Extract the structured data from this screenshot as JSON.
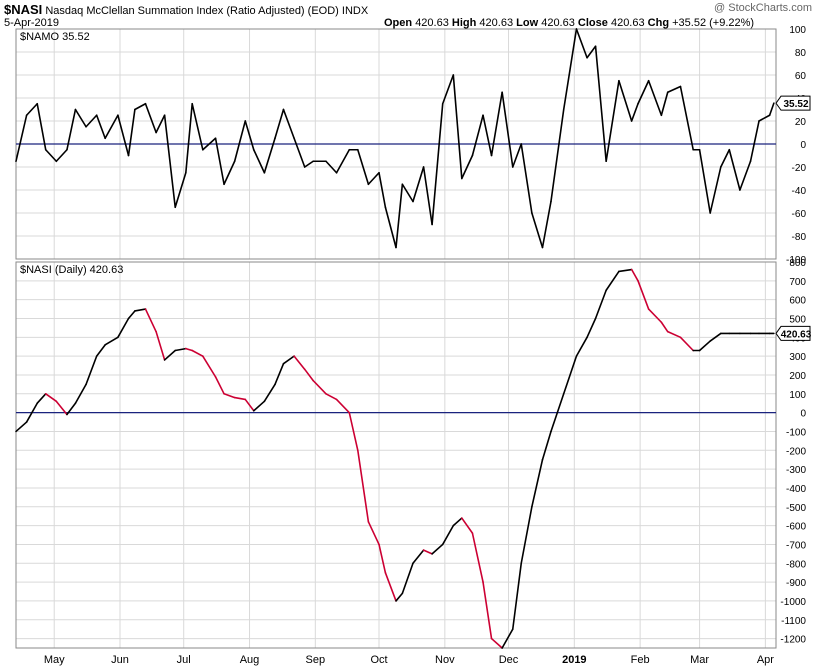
{
  "header": {
    "symbol": "$NASI",
    "description": "Nasdaq McClellan Summation Index (Ratio Adjusted) (EOD)",
    "exchange": "INDX",
    "date": "5-Apr-2019",
    "watermark": "@ StockCharts.com",
    "open_label": "Open",
    "open_value": "420.63",
    "high_label": "High",
    "high_value": "420.63",
    "low_label": "Low",
    "low_value": "420.63",
    "close_label": "Close",
    "close_value": "420.63",
    "chg_label": "Chg",
    "chg_value": "+35.52 (+9.22%)"
  },
  "colors": {
    "up": "#000000",
    "down": "#cc0033",
    "zero_line": "#1a237e",
    "grid": "#d9d9d9",
    "frame": "#8a8a8a"
  },
  "chart_data": [
    {
      "type": "line",
      "title": "$NAMO 35.52",
      "last_value_label": "35.52",
      "ylim": [
        -100,
        100
      ],
      "yticks": [
        100,
        80,
        60,
        40,
        20,
        0,
        -20,
        -40,
        -60,
        -80,
        -100
      ],
      "zero_line": 0,
      "grid": true,
      "x": [
        "2018-04-13",
        "2018-04-18",
        "2018-04-23",
        "2018-04-27",
        "2018-05-02",
        "2018-05-07",
        "2018-05-11",
        "2018-05-16",
        "2018-05-21",
        "2018-05-25",
        "2018-05-31",
        "2018-06-05",
        "2018-06-08",
        "2018-06-13",
        "2018-06-18",
        "2018-06-22",
        "2018-06-27",
        "2018-07-02",
        "2018-07-05",
        "2018-07-10",
        "2018-07-16",
        "2018-07-20",
        "2018-07-25",
        "2018-07-30",
        "2018-08-03",
        "2018-08-08",
        "2018-08-13",
        "2018-08-17",
        "2018-08-22",
        "2018-08-27",
        "2018-08-31",
        "2018-09-06",
        "2018-09-11",
        "2018-09-17",
        "2018-09-21",
        "2018-09-26",
        "2018-10-01",
        "2018-10-04",
        "2018-10-09",
        "2018-10-12",
        "2018-10-17",
        "2018-10-22",
        "2018-10-26",
        "2018-10-31",
        "2018-11-05",
        "2018-11-09",
        "2018-11-14",
        "2018-11-19",
        "2018-11-23",
        "2018-11-28",
        "2018-12-03",
        "2018-12-07",
        "2018-12-12",
        "2018-12-17",
        "2018-12-21",
        "2018-12-27",
        "2019-01-02",
        "2019-01-07",
        "2019-01-11",
        "2019-01-16",
        "2019-01-22",
        "2019-01-28",
        "2019-01-31",
        "2019-02-05",
        "2019-02-11",
        "2019-02-14",
        "2019-02-20",
        "2019-02-26",
        "2019-03-01",
        "2019-03-06",
        "2019-03-11",
        "2019-03-15",
        "2019-03-20",
        "2019-03-25",
        "2019-03-29",
        "2019-04-03",
        "2019-04-05"
      ],
      "values": [
        -15,
        25,
        35,
        -5,
        -15,
        -5,
        30,
        15,
        25,
        5,
        25,
        -10,
        30,
        35,
        10,
        25,
        -55,
        -25,
        35,
        -5,
        5,
        -35,
        -15,
        20,
        -5,
        -25,
        5,
        30,
        5,
        -20,
        -15,
        -15,
        -25,
        -5,
        -5,
        -35,
        -25,
        -55,
        -90,
        -35,
        -50,
        -20,
        -70,
        35,
        60,
        -30,
        -10,
        25,
        -10,
        45,
        -20,
        0,
        -60,
        -90,
        -50,
        30,
        100,
        75,
        85,
        -15,
        55,
        20,
        35,
        55,
        25,
        45,
        50,
        -5,
        -5,
        -60,
        -20,
        -5,
        -40,
        -15,
        20,
        25,
        35.52
      ]
    },
    {
      "type": "line",
      "title": "$NASI (Daily) 420.63",
      "last_value_label": "420.63",
      "ylim": [
        -1250,
        800
      ],
      "yticks": [
        800,
        700,
        600,
        500,
        400,
        300,
        200,
        100,
        0,
        -100,
        -200,
        -300,
        -400,
        -500,
        -600,
        -700,
        -800,
        -900,
        -1000,
        -1100,
        -1200
      ],
      "zero_line": 0,
      "grid": true,
      "x": [
        "2018-04-13",
        "2018-04-18",
        "2018-04-23",
        "2018-04-27",
        "2018-05-02",
        "2018-05-07",
        "2018-05-11",
        "2018-05-16",
        "2018-05-21",
        "2018-05-25",
        "2018-05-31",
        "2018-06-05",
        "2018-06-08",
        "2018-06-13",
        "2018-06-18",
        "2018-06-22",
        "2018-06-27",
        "2018-07-02",
        "2018-07-05",
        "2018-07-10",
        "2018-07-16",
        "2018-07-20",
        "2018-07-25",
        "2018-07-30",
        "2018-08-03",
        "2018-08-08",
        "2018-08-13",
        "2018-08-17",
        "2018-08-22",
        "2018-08-27",
        "2018-08-31",
        "2018-09-06",
        "2018-09-11",
        "2018-09-17",
        "2018-09-21",
        "2018-09-26",
        "2018-10-01",
        "2018-10-04",
        "2018-10-09",
        "2018-10-12",
        "2018-10-17",
        "2018-10-22",
        "2018-10-26",
        "2018-10-31",
        "2018-11-05",
        "2018-11-09",
        "2018-11-14",
        "2018-11-19",
        "2018-11-23",
        "2018-11-28",
        "2018-12-03",
        "2018-12-07",
        "2018-12-12",
        "2018-12-17",
        "2018-12-21",
        "2018-12-27",
        "2019-01-02",
        "2019-01-07",
        "2019-01-11",
        "2019-01-16",
        "2019-01-22",
        "2019-01-28",
        "2019-01-31",
        "2019-02-05",
        "2019-02-11",
        "2019-02-14",
        "2019-02-20",
        "2019-02-26",
        "2019-03-01",
        "2019-03-06",
        "2019-03-11",
        "2019-03-15",
        "2019-03-20",
        "2019-03-25",
        "2019-03-29",
        "2019-04-03",
        "2019-04-05"
      ],
      "values": [
        -100,
        -50,
        50,
        100,
        60,
        -10,
        50,
        150,
        300,
        360,
        400,
        500,
        540,
        550,
        430,
        280,
        330,
        340,
        330,
        300,
        190,
        100,
        80,
        70,
        10,
        60,
        150,
        260,
        300,
        230,
        170,
        100,
        70,
        0,
        -200,
        -580,
        -700,
        -850,
        -1000,
        -960,
        -800,
        -730,
        -750,
        -700,
        -600,
        -560,
        -640,
        -900,
        -1200,
        -1250,
        -1150,
        -800,
        -500,
        -250,
        -100,
        100,
        300,
        400,
        500,
        650,
        750,
        760,
        700,
        550,
        480,
        430,
        400,
        330,
        330,
        380,
        420.63,
        420.63,
        420.63,
        420.63,
        420.63,
        420.63,
        420.63
      ]
    }
  ],
  "x_axis_labels": [
    "May",
    "Jun",
    "Jul",
    "Aug",
    "Sep",
    "Oct",
    "Nov",
    "Dec",
    "2019",
    "Feb",
    "Mar",
    "Apr"
  ]
}
